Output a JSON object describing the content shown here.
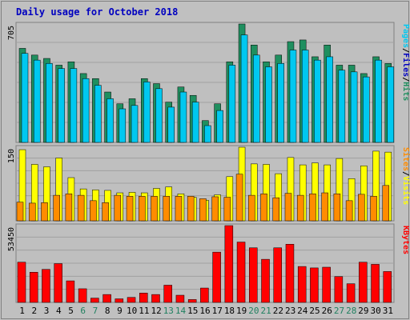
{
  "title": "Daily usage for October 2018",
  "colors": {
    "background": "#ffffff",
    "frame": "#c0c0c0",
    "plot_bg": "#bfbfbf",
    "title": "#0000c0",
    "hits": "#1f8f5f",
    "files": "#00c8f0",
    "visits": "#ffff00",
    "sites": "#ff8c00",
    "kbytes": "#ff0000",
    "weekend_label": "#208060",
    "weekday_label": "#000000"
  },
  "chart_data": [
    {
      "type": "bar",
      "name": "pages-files-hits",
      "ymax_label": "705",
      "ylim": [
        0,
        705
      ],
      "right_label": [
        "Pages",
        "Files",
        "Hits"
      ],
      "categories": [
        "1",
        "2",
        "3",
        "4",
        "5",
        "6",
        "7",
        "8",
        "9",
        "10",
        "11",
        "12",
        "13",
        "14",
        "15",
        "16",
        "17",
        "18",
        "19",
        "20",
        "21",
        "22",
        "23",
        "24",
        "25",
        "26",
        "27",
        "28",
        "29",
        "30",
        "31"
      ],
      "series": [
        {
          "name": "Hits",
          "values": [
            560,
            520,
            500,
            460,
            480,
            410,
            380,
            300,
            230,
            260,
            380,
            350,
            240,
            330,
            280,
            130,
            230,
            480,
            705,
            580,
            480,
            520,
            600,
            610,
            510,
            580,
            460,
            460,
            410,
            510,
            470
          ]
        },
        {
          "name": "Files",
          "values": [
            530,
            490,
            470,
            440,
            440,
            380,
            340,
            260,
            200,
            220,
            360,
            320,
            210,
            300,
            240,
            100,
            190,
            460,
            640,
            520,
            450,
            470,
            550,
            550,
            490,
            510,
            430,
            420,
            390,
            490,
            450
          ]
        },
        {
          "name": "Pages",
          "values": [
            0,
            0,
            0,
            0,
            0,
            0,
            0,
            0,
            0,
            0,
            0,
            0,
            0,
            0,
            0,
            0,
            0,
            0,
            0,
            0,
            0,
            0,
            0,
            0,
            0,
            0,
            0,
            0,
            0,
            0,
            0
          ]
        }
      ]
    },
    {
      "type": "bar",
      "name": "sites-visits",
      "ymax_label": "150",
      "ylim": [
        0,
        150
      ],
      "right_label": [
        "Sites",
        "Visits"
      ],
      "categories": [
        "1",
        "2",
        "3",
        "4",
        "5",
        "6",
        "7",
        "8",
        "9",
        "10",
        "11",
        "12",
        "13",
        "14",
        "15",
        "16",
        "17",
        "18",
        "19",
        "20",
        "21",
        "22",
        "23",
        "24",
        "25",
        "26",
        "27",
        "28",
        "29",
        "30",
        "31"
      ],
      "series": [
        {
          "name": "Visits",
          "values": [
            145,
            115,
            110,
            128,
            88,
            65,
            63,
            62,
            57,
            58,
            57,
            66,
            69,
            55,
            48,
            42,
            53,
            90,
            150,
            116,
            115,
            96,
            129,
            114,
            118,
            114,
            127,
            86,
            112,
            142,
            140
          ]
        },
        {
          "name": "Sites",
          "values": [
            38,
            36,
            37,
            52,
            55,
            52,
            41,
            37,
            52,
            50,
            50,
            50,
            50,
            50,
            50,
            45,
            49,
            48,
            95,
            52,
            55,
            47,
            56,
            52,
            55,
            57,
            55,
            41,
            54,
            50,
            72
          ]
        }
      ]
    },
    {
      "type": "bar",
      "name": "kbytes",
      "ymax_label": "53450",
      "ylim": [
        0,
        53450
      ],
      "right_label": [
        "KBytes"
      ],
      "categories": [
        "1",
        "2",
        "3",
        "4",
        "5",
        "6",
        "7",
        "8",
        "9",
        "10",
        "11",
        "12",
        "13",
        "14",
        "15",
        "16",
        "17",
        "18",
        "19",
        "20",
        "21",
        "22",
        "23",
        "24",
        "25",
        "26",
        "27",
        "28",
        "29",
        "30",
        "31"
      ],
      "series": [
        {
          "name": "KBytes",
          "values": [
            28000,
            21000,
            23000,
            27000,
            15000,
            9500,
            3000,
            5500,
            2500,
            3500,
            6500,
            5500,
            12000,
            5000,
            2000,
            10000,
            35000,
            53450,
            42000,
            38000,
            30000,
            38000,
            40500,
            25000,
            24000,
            24500,
            18000,
            13000,
            28000,
            26500,
            21500
          ]
        }
      ]
    }
  ],
  "x_labels": [
    "1",
    "2",
    "3",
    "4",
    "5",
    "6",
    "7",
    "8",
    "9",
    "10",
    "11",
    "12",
    "13",
    "14",
    "15",
    "16",
    "17",
    "18",
    "19",
    "20",
    "21",
    "22",
    "23",
    "24",
    "25",
    "26",
    "27",
    "28",
    "29",
    "30",
    "31"
  ],
  "weekend_days": [
    "6",
    "7",
    "13",
    "14",
    "20",
    "21",
    "27",
    "28"
  ]
}
